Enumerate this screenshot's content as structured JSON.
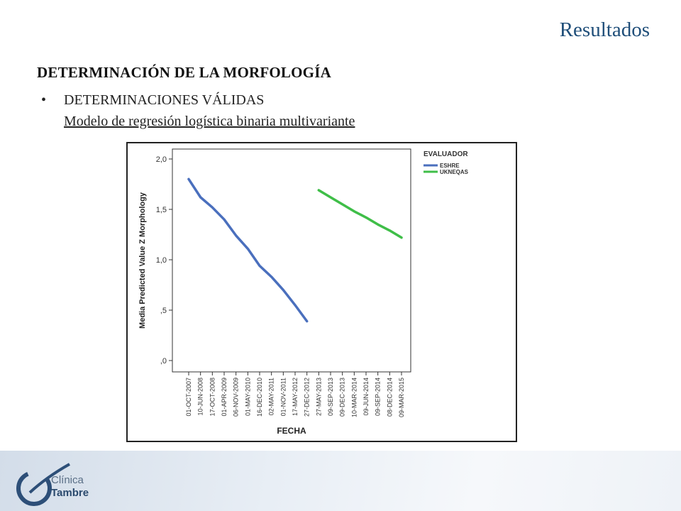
{
  "slide": {
    "title": "Resultados",
    "heading": "DETERMINACIÓN DE LA MORFOLOGÍA",
    "bullet": "•",
    "bullet_text": "DETERMINACIONES VÁLIDAS",
    "bullet_subtext": "Modelo de regresión logística binaria multivariante"
  },
  "logo": {
    "line1": "Clínica",
    "line2": "Tambre"
  },
  "chart_data": {
    "type": "line",
    "xlabel": "FECHA",
    "ylabel": "Media Predicted Value Z Morphology",
    "ylim": [
      0,
      2.0
    ],
    "yticks": [
      "2,0",
      "1,5",
      "1,0",
      ",5",
      ",0"
    ],
    "ytick_values": [
      2.0,
      1.5,
      1.0,
      0.5,
      0.0
    ],
    "categories": [
      "01-OCT-2007",
      "10-JUN-2008",
      "17-OCT-2008",
      "01-APR-2009",
      "06-NOV-2009",
      "01-MAY-2010",
      "16-DEC-2010",
      "02-MAY-2011",
      "01-NOV-2011",
      "17-MAY-2012",
      "27-DEC-2012",
      "27-MAY-2013",
      "09-SEP-2013",
      "09-DEC-2013",
      "10-MAR-2014",
      "09-JUN-2014",
      "09-SEP-2014",
      "08-DEC-2014",
      "09-MAR-2015"
    ],
    "legend_title": "EVALUADOR",
    "legend_position": "top-right",
    "grid": false,
    "series": [
      {
        "name": "ESHRE",
        "color": "#4a6fbd",
        "values": [
          1.8,
          1.62,
          1.52,
          1.4,
          1.24,
          1.11,
          0.94,
          0.83,
          0.7,
          0.55,
          0.39,
          null,
          null,
          null,
          null,
          null,
          null,
          null,
          null
        ]
      },
      {
        "name": "UKNEQAS",
        "color": "#3fbe48",
        "values": [
          null,
          null,
          null,
          null,
          null,
          null,
          null,
          null,
          null,
          null,
          null,
          1.69,
          1.62,
          1.55,
          1.48,
          1.42,
          1.35,
          1.29,
          1.22
        ]
      }
    ]
  }
}
